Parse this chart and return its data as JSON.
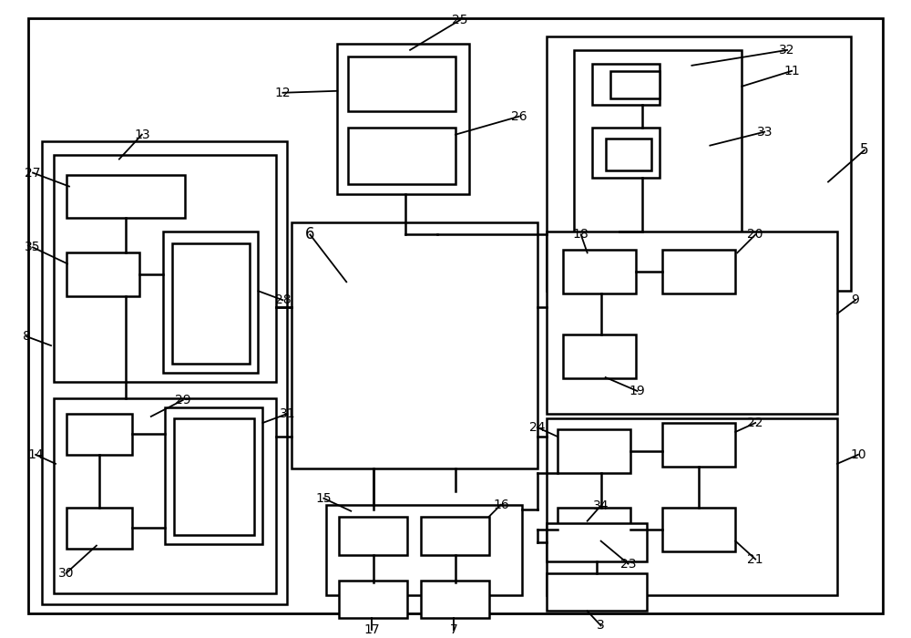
{
  "bg": "#ffffff",
  "lw": 1.8
}
